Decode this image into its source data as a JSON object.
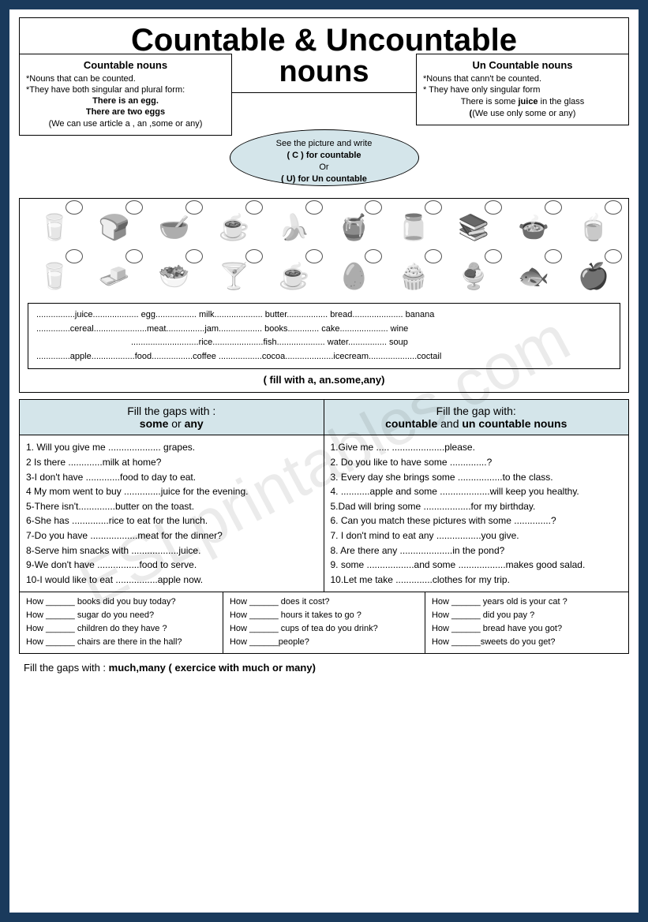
{
  "watermark": "ESLprintables.com",
  "title_line1": "Countable & Uncountable",
  "title_line2": "nouns",
  "countable": {
    "heading": "Countable nouns",
    "rule1": "*Nouns that can be counted.",
    "rule2": "*They have both singular and plural form:",
    "ex1": "There is an egg.",
    "ex2": "There are two eggs",
    "note": "(We can use article a , an ,some or any)"
  },
  "uncountable": {
    "heading": "Un Countable nouns",
    "rule1": "*Nouns that cann't be counted.",
    "rule2": "* They have only singular form",
    "ex1_pre": "There is some ",
    "ex1_bold": "juice",
    "ex1_post": " in the glass",
    "note": "(We use only some or any)"
  },
  "oval": {
    "line1": "See the picture and write",
    "line2": "( C ) for countable",
    "line3": "Or",
    "line4": "( U) for Un countable"
  },
  "icons_row1": [
    "🥛",
    "🍞",
    "🥣",
    "☕",
    "🍌",
    "🍯",
    "🫙",
    "📚",
    "🍲",
    "🍵"
  ],
  "icons_row2": [
    "🥛",
    "🧈",
    "🥗",
    "🍸",
    "☕",
    "🥚",
    "🧁",
    "🍨",
    "🐟",
    "🍎"
  ],
  "wordlist": {
    "l1": "................juice................... egg................. milk.................... butter................. bread..................... banana",
    "l2": "..............cereal......................meat................jam.................. books............. cake.................... wine",
    "l3": "............................rice.....................fish.................... water................ soup",
    "l4": "..............apple..................food.................coffee ..................cocoa....................icecream....................coctail"
  },
  "fill_instruction": "( fill with a, an.some,any)",
  "ex_left": {
    "h1": "Fill the gaps with :",
    "h2_a": "some",
    "h2_b": " or ",
    "h2_c": "any",
    "items": [
      "1. Will you give me .................... grapes.",
      "2 Is there .............milk at home?",
      "3-I don't have .............food to day to eat.",
      "4 My mom went to buy ..............juice for the evening.",
      "5-There isn't..............butter on the toast.",
      "6-She has ..............rice to eat for the lunch.",
      "7-Do you have ..................meat for the dinner?",
      "8-Serve him snacks with ..................juice.",
      "9-We don't have ................food to serve.",
      "10-I would like to eat ................apple now."
    ]
  },
  "ex_right": {
    "h1": "Fill the gap with:",
    "h2_a": "countable",
    "h2_b": " and ",
    "h2_c": "un countable nouns",
    "items": [
      "1.Give me ..... ....................please.",
      "2. Do you like to have some ..............?",
      "3. Every day she brings some .................to the class.",
      "4. ...........apple and some ...................will keep you healthy.",
      "5.Dad will bring some ..................for my birthday.",
      "6. Can you match these pictures with some ..............?",
      "7. I don't mind to eat any .................you give.",
      "8. Are there any ....................in the pond?",
      "9. some ..................and some ..................makes good salad.",
      "10.Let me take ..............clothes for my trip."
    ]
  },
  "bottom": {
    "c1": [
      "How ______ books did you buy today?",
      "How ______ sugar do you need?",
      "How ______ children do they have ?",
      "How ______ chairs are there in the hall?"
    ],
    "c2": [
      "How ______ does it cost?",
      "How ______ hours it takes to go ?",
      "How ______ cups of tea do you drink?",
      "How ______people?"
    ],
    "c3": [
      "How ______ years old is your cat ?",
      "How ______ did you pay ?",
      "How ______ bread have you got?",
      "How ______sweets do you get?"
    ]
  },
  "final": {
    "pre": "Fill the gaps with : ",
    "bold": "much,many",
    "post": "     ( exercice with much or many)"
  }
}
